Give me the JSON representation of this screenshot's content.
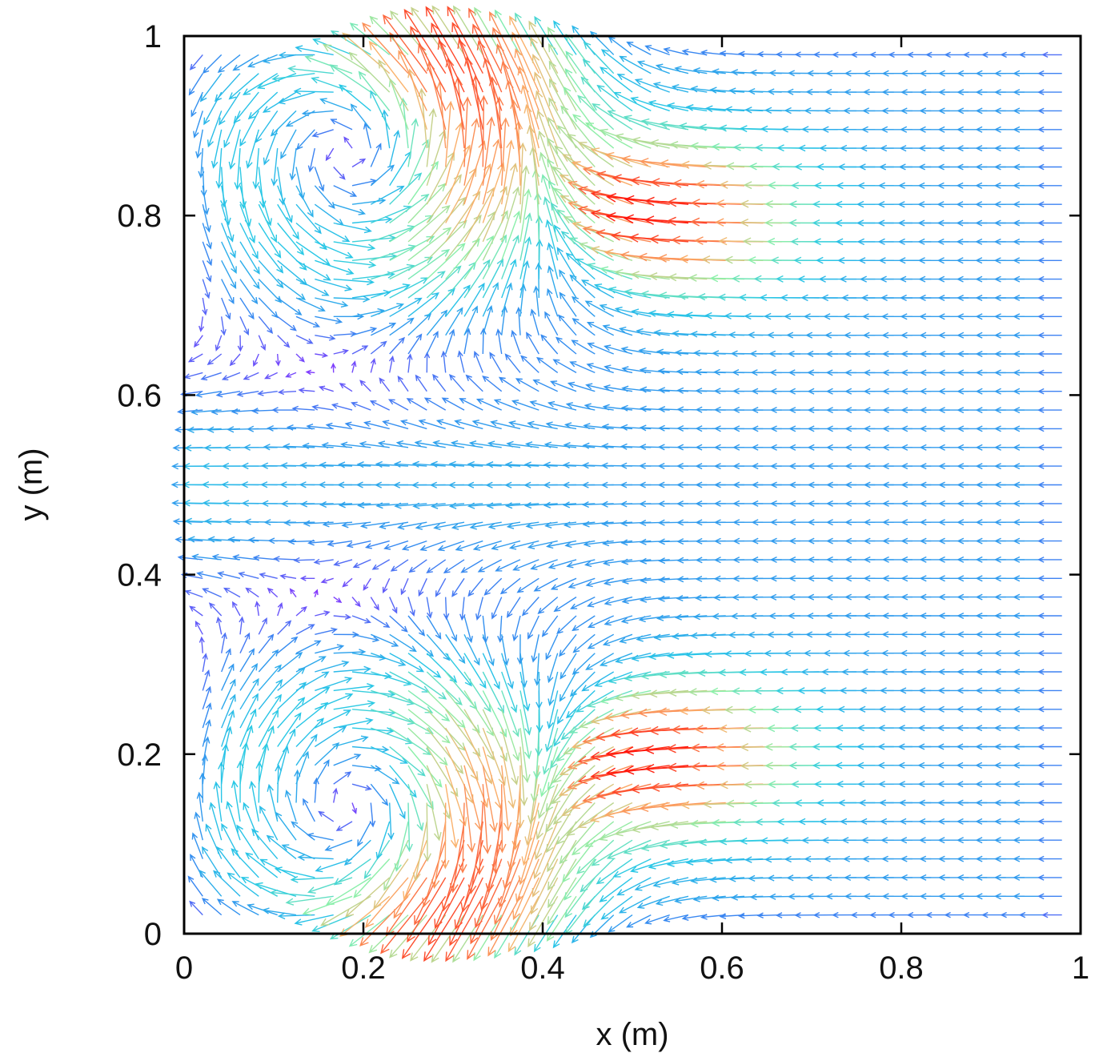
{
  "chart_data": {
    "type": "vector-field",
    "title": "",
    "xlabel": "x (m)",
    "ylabel": "y (m)",
    "xlim": [
      0,
      1
    ],
    "ylim": [
      0,
      1
    ],
    "xticks": [
      {
        "value": 0,
        "label": "0"
      },
      {
        "value": 0.2,
        "label": "0.2"
      },
      {
        "value": 0.4,
        "label": "0.4"
      },
      {
        "value": 0.6,
        "label": "0.6"
      },
      {
        "value": 0.8,
        "label": "0.8"
      },
      {
        "value": 1,
        "label": "1"
      }
    ],
    "yticks": [
      {
        "value": 0,
        "label": "0"
      },
      {
        "value": 0.2,
        "label": "0.2"
      },
      {
        "value": 0.4,
        "label": "0.4"
      },
      {
        "value": 0.6,
        "label": "0.6"
      },
      {
        "value": 0.8,
        "label": "0.8"
      },
      {
        "value": 1,
        "label": "1"
      }
    ],
    "grid": false,
    "legend": "none",
    "colormap": "rainbow (violet = low speed, red = high speed)",
    "vortices": [
      {
        "x": 0.22,
        "y": 0.87,
        "rotation": "counter-clockwise"
      },
      {
        "x": 0.22,
        "y": 0.14,
        "rotation": "clockwise"
      }
    ],
    "flow_summary": "leftward flow across right half, fastest near x 0.45-0.7 at y 0.2 and y 0.8"
  }
}
